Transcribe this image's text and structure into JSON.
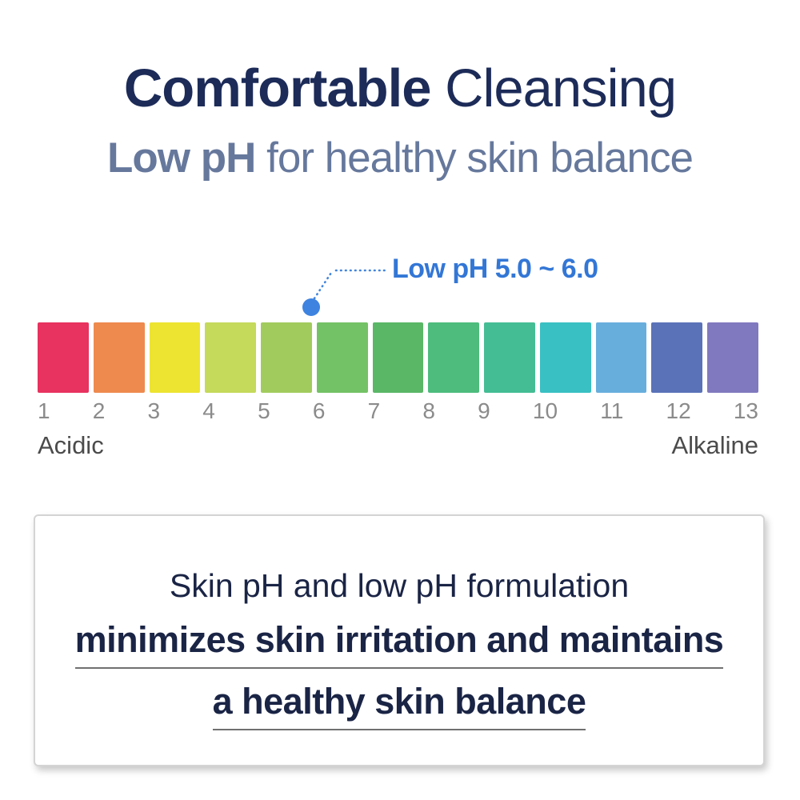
{
  "header": {
    "title": {
      "strong": "Comfortable",
      "light": " Cleansing",
      "color": "#1c2b58"
    },
    "subtitle": {
      "strong": "Low pH",
      "light": " for healthy skin balance",
      "color": "#66789c"
    }
  },
  "ph_scale": {
    "annotation": {
      "label": "Low pH 5.0 ~ 6.0",
      "text_color": "#3377d6",
      "dot_color": "#3e83e0",
      "line_color": "#4285dc"
    },
    "blocks": [
      {
        "value": 1,
        "color": "#e8325f"
      },
      {
        "value": 2,
        "color": "#ee8a4e"
      },
      {
        "value": 3,
        "color": "#ede431"
      },
      {
        "value": 4,
        "color": "#c5d95b"
      },
      {
        "value": 5,
        "color": "#a2cb5e"
      },
      {
        "value": 6,
        "color": "#74c266"
      },
      {
        "value": 7,
        "color": "#59b766"
      },
      {
        "value": 8,
        "color": "#4dbc7d"
      },
      {
        "value": 9,
        "color": "#44bd95"
      },
      {
        "value": 10,
        "color": "#39c0c3"
      },
      {
        "value": 11,
        "color": "#68aedd"
      },
      {
        "value": 12,
        "color": "#5a72b8"
      },
      {
        "value": 13,
        "color": "#8179bf"
      }
    ],
    "left_label": "Acidic",
    "right_label": "Alkaline"
  },
  "info_box": {
    "line1": "Skin pH and low pH formulation",
    "line2": "minimizes skin irritation and maintains",
    "line3": "a healthy skin balance"
  }
}
